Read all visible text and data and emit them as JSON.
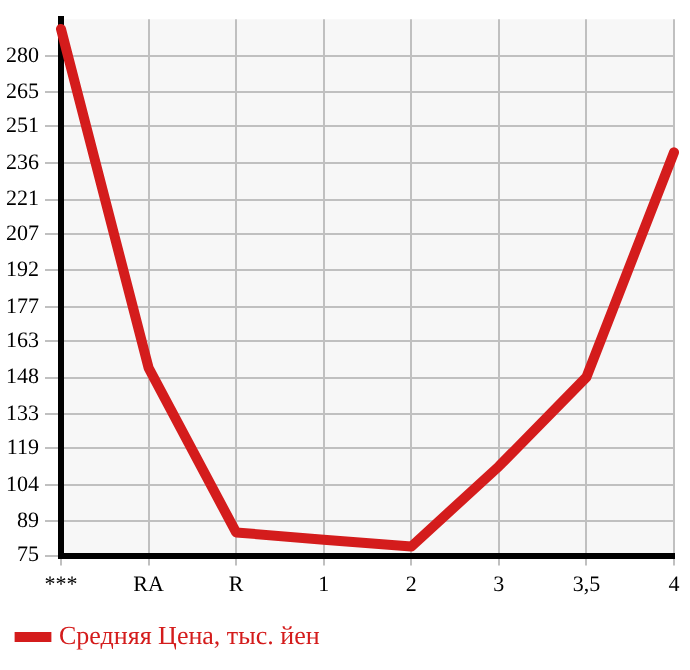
{
  "chart_data": {
    "type": "line",
    "categories": [
      "***",
      "RA",
      "R",
      "1",
      "2",
      "3",
      "3,5",
      "4"
    ],
    "series": [
      {
        "name": "Средняя Цена, тыс. йен",
        "color": "#d41c1c",
        "values": [
          291,
          152,
          84.5,
          81.5,
          78.7,
          111.6,
          148.2,
          240.4
        ]
      }
    ],
    "ylim": [
      75,
      295
    ],
    "yticks": [
      75,
      89,
      104,
      119,
      133,
      148,
      163,
      177,
      192,
      207,
      221,
      236,
      251,
      265,
      280
    ],
    "grid": true,
    "legend": "bottom",
    "marker": "none",
    "line_style": "solid"
  }
}
